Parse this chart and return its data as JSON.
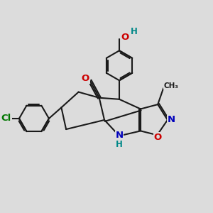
{
  "bg_color": "#dcdcdc",
  "bond_color": "#1a1a1a",
  "bond_lw": 1.5,
  "dbl_off": 0.07,
  "clr_O": "#cc0000",
  "clr_N": "#0000bb",
  "clr_Cl": "#007700",
  "clr_H": "#008888",
  "clr_C": "#1a1a1a",
  "xlim": [
    0.0,
    10.0
  ],
  "ylim": [
    1.5,
    10.5
  ]
}
